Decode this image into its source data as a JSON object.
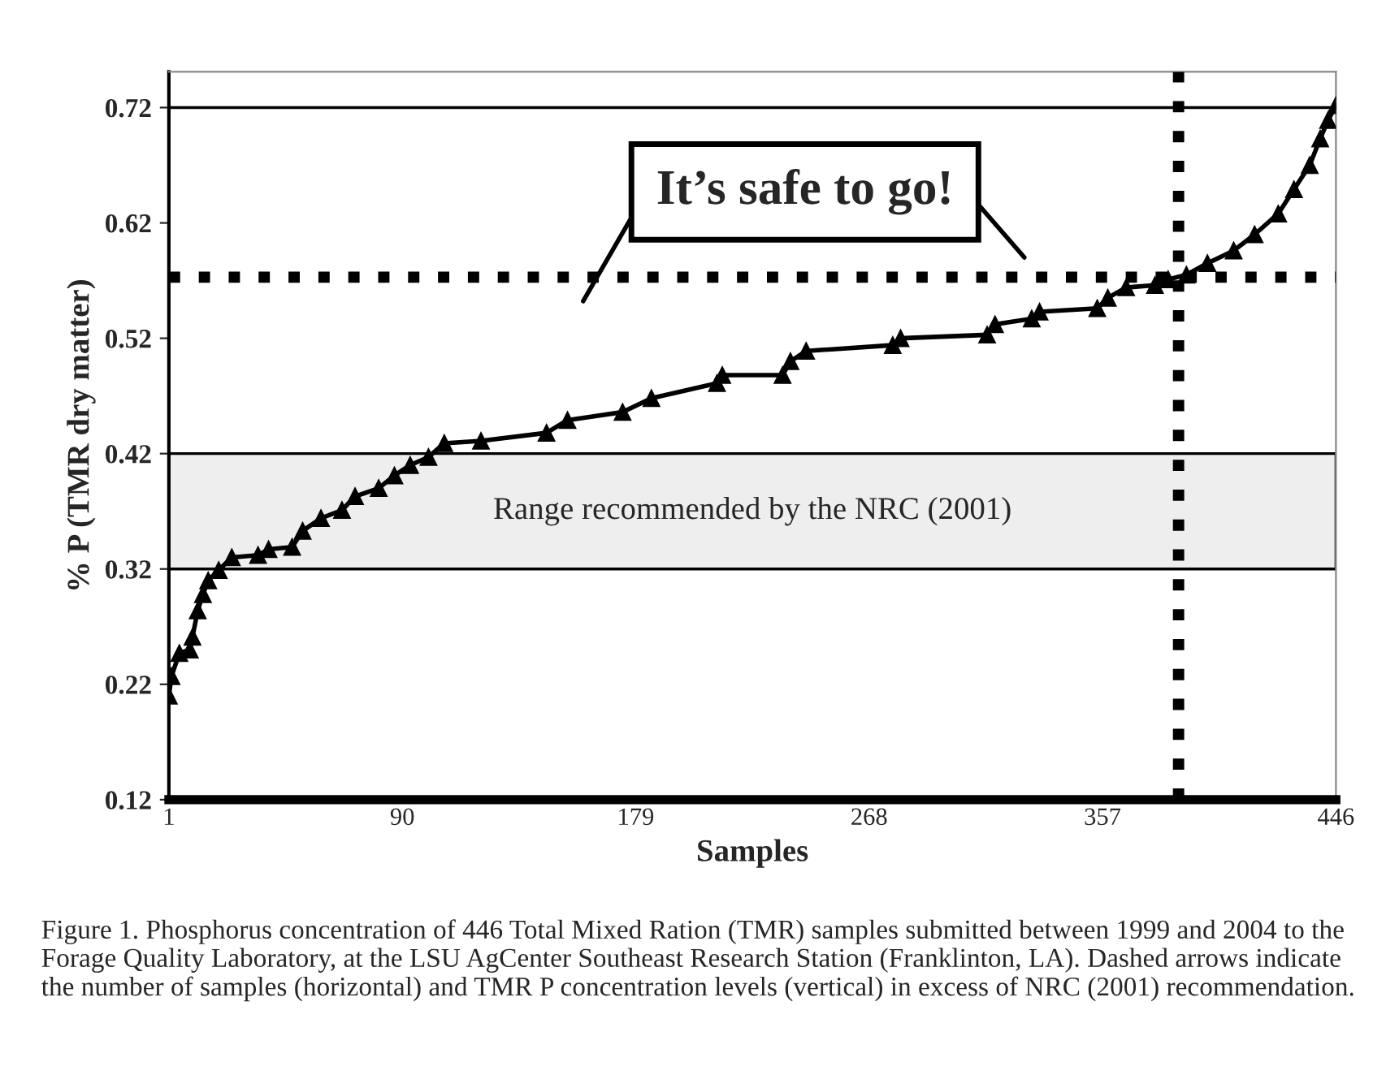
{
  "chart_data": {
    "type": "line",
    "xlabel": "Samples",
    "ylabel": "% P (TMR dry matter)",
    "xlim": [
      1,
      446
    ],
    "xticks": [
      1,
      90,
      179,
      268,
      357,
      446
    ],
    "ylim": [
      0.12,
      0.751
    ],
    "yticks": [
      0.12,
      0.22,
      0.32,
      0.42,
      0.52,
      0.62,
      0.72
    ],
    "grid": false,
    "legend": false,
    "marker": "triangle",
    "line_style": "solid",
    "series": [
      {
        "color": "#000000",
        "x": [
          1,
          2,
          5,
          9,
          10,
          12,
          14,
          16,
          20,
          25,
          35,
          39,
          48,
          52,
          59,
          67,
          72,
          81,
          87,
          93,
          100,
          106,
          120,
          145,
          153,
          174,
          185,
          210,
          212,
          235,
          238,
          244,
          277,
          280,
          313,
          316,
          330,
          333,
          355,
          359,
          366,
          377,
          382,
          389,
          397,
          407,
          415,
          424,
          430,
          436,
          440,
          443,
          446
        ],
        "values": [
          0.21,
          0.227,
          0.247,
          0.25,
          0.261,
          0.284,
          0.298,
          0.31,
          0.319,
          0.33,
          0.332,
          0.337,
          0.339,
          0.353,
          0.364,
          0.371,
          0.383,
          0.39,
          0.401,
          0.41,
          0.417,
          0.429,
          0.431,
          0.438,
          0.449,
          0.456,
          0.468,
          0.481,
          0.488,
          0.488,
          0.5,
          0.509,
          0.514,
          0.52,
          0.523,
          0.532,
          0.537,
          0.543,
          0.546,
          0.555,
          0.564,
          0.566,
          0.571,
          0.575,
          0.585,
          0.596,
          0.61,
          0.628,
          0.649,
          0.67,
          0.693,
          0.709,
          0.722
        ]
      }
    ],
    "ref_lines": [
      {
        "axis": "y",
        "value": 0.72,
        "color": "#000000",
        "line_style": "solid"
      },
      {
        "axis": "y",
        "value": 0.573,
        "color": "#000000",
        "line_style": "dotted"
      },
      {
        "axis": "x",
        "value": 386,
        "color": "#000000",
        "line_style": "dotted"
      }
    ],
    "bands": [
      {
        "axis": "y",
        "from": 0.32,
        "to": 0.42,
        "label": "Range recommended by the NRC (2001)",
        "color": "#eeeeee"
      }
    ],
    "annotations": [
      "It’s safe to go!",
      "Figure 1. Phosphorus concentration of 446 Total Mixed Ration (TMR) samples submitted between 1999 and 2004 to the Forage Quality Laboratory, at the LSU AgCenter Southeast Research Station (Franklinton, LA). Dashed arrows indicate the number of samples (horizontal) and TMR P concentration levels (vertical) in excess of NRC (2001) recommendation."
    ]
  }
}
